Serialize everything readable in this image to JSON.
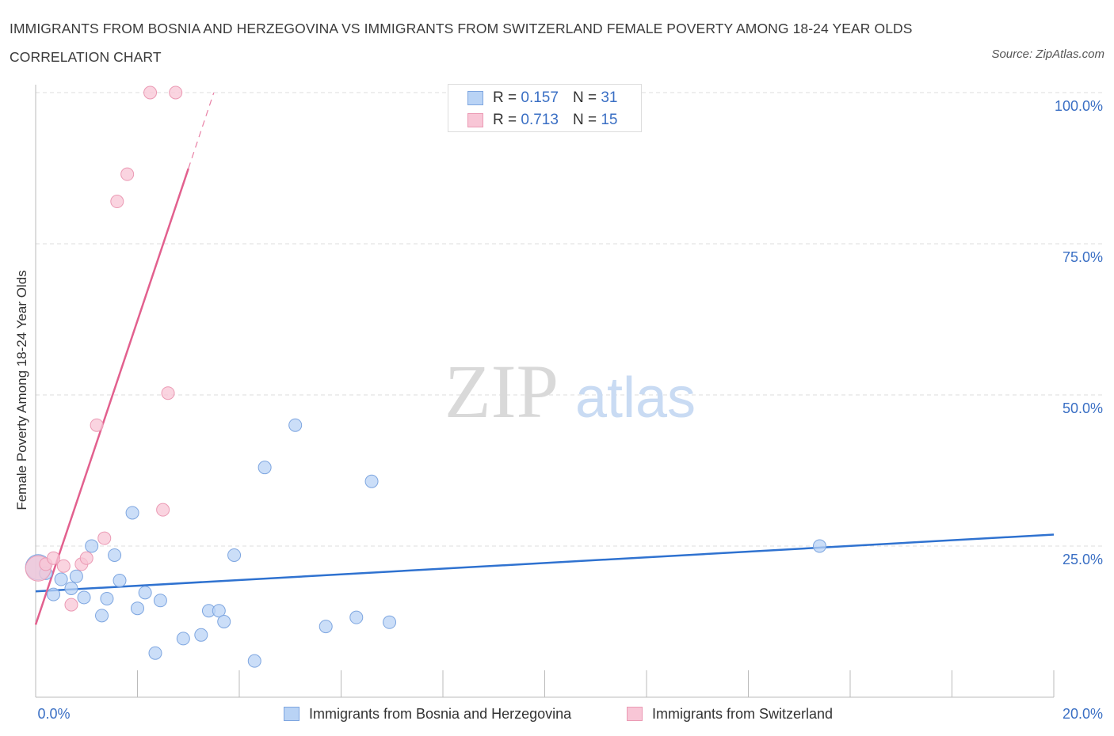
{
  "title": "IMMIGRANTS FROM BOSNIA AND HERZEGOVINA VS IMMIGRANTS FROM SWITZERLAND FEMALE POVERTY AMONG 18-24 YEAR OLDS CORRELATION CHART",
  "source": "Source: ZipAtlas.com",
  "watermark": {
    "zip": "ZIP",
    "atlas": "atlas"
  },
  "colors": {
    "blue_fill": "#b9d3f5",
    "blue_stroke": "#7ea6e0",
    "blue_line": "#2f72d0",
    "pink_fill": "#f8c6d6",
    "pink_stroke": "#eb9ab4",
    "pink_line": "#e2608e",
    "tick_label": "#3a6fc4",
    "grid": "#dddddd"
  },
  "legend": {
    "r_label": "R = ",
    "n_label": "N = ",
    "series": [
      {
        "r": "0.157",
        "n": "31"
      },
      {
        "r": "0.713",
        "n": "15"
      }
    ]
  },
  "chart_data": {
    "type": "scatter",
    "title": "IMMIGRANTS FROM BOSNIA AND HERZEGOVINA VS IMMIGRANTS FROM SWITZERLAND FEMALE POVERTY AMONG 18-24 YEAR OLDS CORRELATION CHART",
    "xlabel": "",
    "ylabel": "Female Poverty Among 18-24 Year Olds",
    "xlim": [
      0,
      20
    ],
    "ylim": [
      0,
      100
    ],
    "x_tick_labels": [
      "0.0%",
      "20.0%"
    ],
    "y_tick_labels": [
      {
        "value": 100,
        "label": "100.0%"
      },
      {
        "value": 75,
        "label": "75.0%"
      },
      {
        "value": 50,
        "label": "50.0%"
      },
      {
        "value": 25,
        "label": "25.0%"
      }
    ],
    "series": [
      {
        "name": "Immigrants from Bosnia and Herzegovina",
        "color": "blue",
        "r": 0.157,
        "n": 31,
        "trend": {
          "x0": 0,
          "y0": 17.5,
          "x1": 20,
          "y1": 26.9,
          "dashed_from": null
        },
        "points": [
          {
            "x": 0.05,
            "y": 21.5,
            "big": true
          },
          {
            "x": 0.2,
            "y": 20.5
          },
          {
            "x": 0.35,
            "y": 17
          },
          {
            "x": 0.5,
            "y": 19.5
          },
          {
            "x": 0.7,
            "y": 18
          },
          {
            "x": 0.8,
            "y": 20
          },
          {
            "x": 0.95,
            "y": 16.5
          },
          {
            "x": 1.1,
            "y": 25
          },
          {
            "x": 1.3,
            "y": 13.5
          },
          {
            "x": 1.4,
            "y": 16.3
          },
          {
            "x": 1.55,
            "y": 23.5
          },
          {
            "x": 1.65,
            "y": 19.3
          },
          {
            "x": 1.9,
            "y": 30.5
          },
          {
            "x": 2.0,
            "y": 14.7
          },
          {
            "x": 2.15,
            "y": 17.3
          },
          {
            "x": 2.35,
            "y": 7.3
          },
          {
            "x": 2.45,
            "y": 16
          },
          {
            "x": 2.9,
            "y": 9.7
          },
          {
            "x": 3.25,
            "y": 10.3
          },
          {
            "x": 3.4,
            "y": 14.3
          },
          {
            "x": 3.6,
            "y": 14.3
          },
          {
            "x": 3.7,
            "y": 12.5
          },
          {
            "x": 3.9,
            "y": 23.5
          },
          {
            "x": 4.3,
            "y": 6
          },
          {
            "x": 4.5,
            "y": 38
          },
          {
            "x": 5.1,
            "y": 45
          },
          {
            "x": 5.7,
            "y": 11.7
          },
          {
            "x": 6.3,
            "y": 13.2
          },
          {
            "x": 6.6,
            "y": 35.7
          },
          {
            "x": 6.95,
            "y": 12.4
          },
          {
            "x": 15.4,
            "y": 25
          }
        ]
      },
      {
        "name": "Immigrants from Switzerland",
        "color": "pink",
        "r": 0.713,
        "n": 15,
        "trend": {
          "x0": 0,
          "y0": 12.0,
          "x1": 3.5,
          "y1": 100.0,
          "dashed_from": 3.0
        },
        "points": [
          {
            "x": 0.05,
            "y": 21.3,
            "big": true
          },
          {
            "x": 0.2,
            "y": 22
          },
          {
            "x": 0.35,
            "y": 23
          },
          {
            "x": 0.55,
            "y": 21.7
          },
          {
            "x": 0.7,
            "y": 15.3
          },
          {
            "x": 0.9,
            "y": 22
          },
          {
            "x": 1.0,
            "y": 23
          },
          {
            "x": 1.2,
            "y": 45
          },
          {
            "x": 1.35,
            "y": 26.3
          },
          {
            "x": 1.6,
            "y": 82
          },
          {
            "x": 1.8,
            "y": 86.5
          },
          {
            "x": 2.25,
            "y": 100
          },
          {
            "x": 2.5,
            "y": 31
          },
          {
            "x": 2.6,
            "y": 50.3
          },
          {
            "x": 2.75,
            "y": 100
          }
        ]
      }
    ],
    "bottom_legend": [
      "Immigrants from Bosnia and Herzegovina",
      "Immigrants from Switzerland"
    ]
  }
}
